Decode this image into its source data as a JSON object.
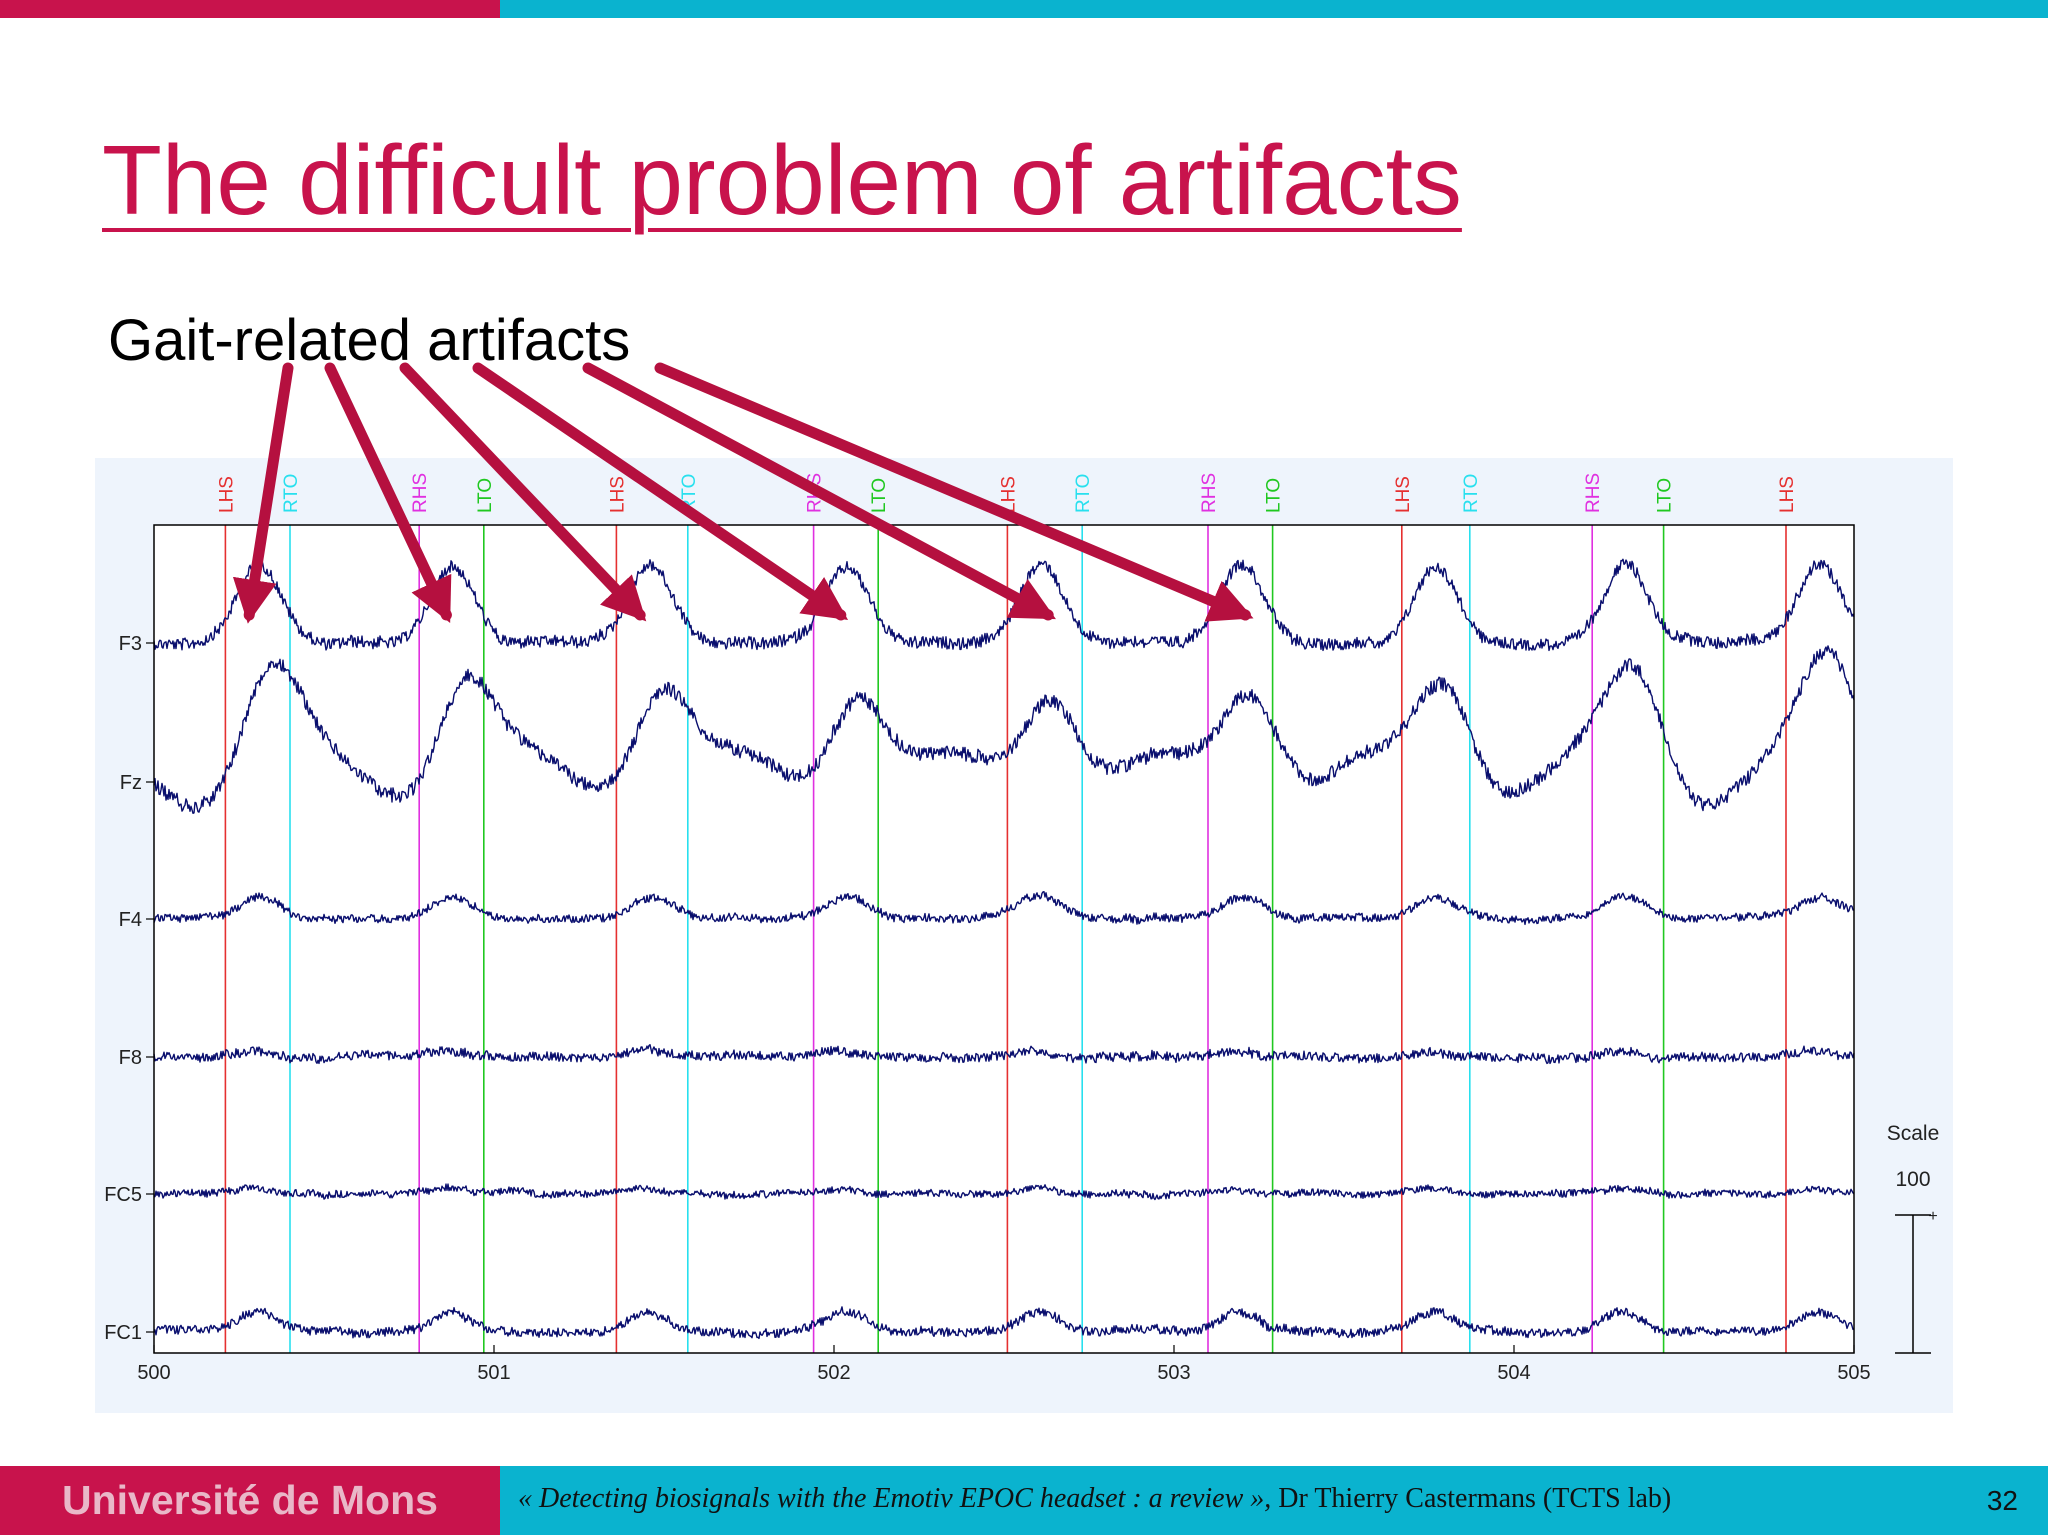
{
  "slide": {
    "title": "The difficult problem of artifacts",
    "subtitle": "Gait-related artifacts",
    "page_number": "32"
  },
  "footer": {
    "university": "Université de Mons",
    "citation_title": "« Detecting biosignals with the Emotiv EPOC headset : a review »,",
    "citation_author": " Dr Thierry Castermans (TCTS lab)"
  },
  "colors": {
    "brand_red": "#c8134c",
    "brand_cyan": "#0ab3cf",
    "trace": "#0a0f6e",
    "LHS": "#e53030",
    "RTO": "#28e0ee",
    "RHS": "#e030e0",
    "LTO": "#20c820"
  },
  "chart_data": {
    "type": "line",
    "x": {
      "ticks": [
        "500",
        "501",
        "502",
        "503",
        "504",
        "505"
      ],
      "range": [
        500,
        505
      ]
    },
    "channels": [
      "F3",
      "Fz",
      "F4",
      "F8",
      "FC5",
      "FC1"
    ],
    "events": [
      {
        "label": "LHS",
        "t": 500.21
      },
      {
        "label": "RTO",
        "t": 500.4
      },
      {
        "label": "RHS",
        "t": 500.78
      },
      {
        "label": "LTO",
        "t": 500.97
      },
      {
        "label": "LHS",
        "t": 501.36
      },
      {
        "label": "RTO",
        "t": 501.57
      },
      {
        "label": "RHS",
        "t": 501.94
      },
      {
        "label": "LTO",
        "t": 502.13
      },
      {
        "label": "LHS",
        "t": 502.51
      },
      {
        "label": "RTO",
        "t": 502.73
      },
      {
        "label": "RHS",
        "t": 503.1
      },
      {
        "label": "LTO",
        "t": 503.29
      },
      {
        "label": "LHS",
        "t": 503.67
      },
      {
        "label": "RTO",
        "t": 503.87
      },
      {
        "label": "RHS",
        "t": 504.23
      },
      {
        "label": "LTO",
        "t": 504.44
      },
      {
        "label": "LHS",
        "t": 504.8
      }
    ],
    "artifact_peaks_t": [
      500.28,
      500.86,
      501.43,
      502.02,
      502.63,
      503.21
    ],
    "scale": {
      "label": "Scale",
      "value": "100",
      "sign": "+"
    }
  }
}
